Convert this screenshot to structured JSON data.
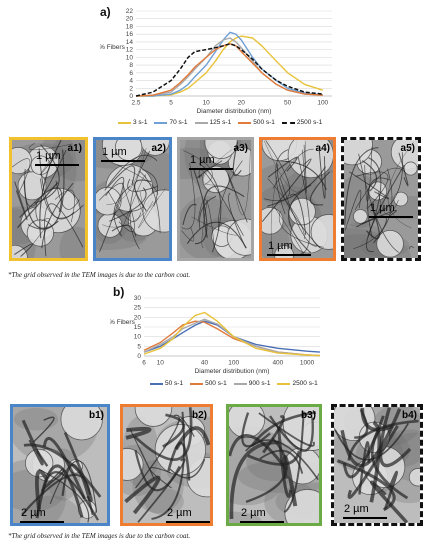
{
  "figure_a": {
    "label": "a)",
    "chart_data": {
      "type": "line",
      "ylabel": "% Fibers",
      "xlabel": "Diameter distribution (nm)",
      "x_scale": "log",
      "x_ticks": [
        "2.5",
        "5",
        "10",
        "20",
        "50",
        "100"
      ],
      "x_tick_values": [
        2.5,
        5,
        10,
        20,
        50,
        100
      ],
      "y_ticks": [
        "0",
        "2",
        "4",
        "6",
        "8",
        "10",
        "12",
        "14",
        "16",
        "18",
        "20",
        "22"
      ],
      "ylim": [
        0,
        22
      ],
      "xlim": [
        2.5,
        120
      ],
      "grid": true,
      "legend_position": "bottom",
      "x": [
        2.5,
        3.5,
        5,
        6,
        7,
        8,
        10,
        12,
        14,
        16,
        18,
        20,
        25,
        30,
        40,
        50,
        70,
        100
      ],
      "series": [
        {
          "name": "3 s-1",
          "color": "#e8c23a",
          "style": "solid",
          "values": [
            0,
            0,
            0.3,
            1,
            2,
            3.5,
            6,
            9,
            12,
            14,
            15,
            15.5,
            15,
            13,
            9,
            6,
            3,
            1.5
          ]
        },
        {
          "name": "70 s-1",
          "color": "#6f9fd4",
          "style": "solid",
          "values": [
            0,
            0,
            0.5,
            1.5,
            3,
            5,
            8,
            11.5,
            14.5,
            16.5,
            16,
            14.5,
            10,
            7,
            4,
            2,
            0.8,
            0.3
          ]
        },
        {
          "name": "125 s-1",
          "color": "#a9a9a9",
          "style": "solid",
          "values": [
            0,
            0.2,
            1,
            3,
            5,
            7,
            10,
            13,
            14.5,
            15,
            14,
            12.5,
            9,
            6,
            3,
            1.5,
            0.5,
            0.2
          ]
        },
        {
          "name": "500 s-1",
          "color": "#e07b3c",
          "style": "solid",
          "values": [
            0,
            0.2,
            1.5,
            3.5,
            5.5,
            7.5,
            10,
            12,
            13,
            13.5,
            13,
            11.5,
            8.5,
            6,
            3,
            1.5,
            0.5,
            0.2
          ]
        },
        {
          "name": "2500 s-1",
          "color": "#111111",
          "style": "dashed",
          "values": [
            0,
            1,
            4,
            7,
            10,
            11.5,
            12,
            12.5,
            13,
            13.5,
            13,
            12,
            9.5,
            7,
            4,
            2.5,
            1,
            0.5
          ]
        }
      ]
    },
    "panels": [
      {
        "tag": "a1)",
        "scale": "1 µm",
        "border": "#f2c12e"
      },
      {
        "tag": "a2)",
        "scale": "1 µm",
        "border": "#4a84c9"
      },
      {
        "tag": "a3)",
        "scale": "1 µm",
        "border": "#a5a5a5"
      },
      {
        "tag": "a4)",
        "scale": "1 µm",
        "border": "#ee7d31"
      },
      {
        "tag": "a5)",
        "scale": "1 µm",
        "border": "#111111"
      }
    ],
    "note": "*The grid observed in the TEM images is due to the carbon coat."
  },
  "figure_b": {
    "label": "b)",
    "chart_data": {
      "type": "line",
      "ylabel": "% Fibers",
      "xlabel": "Diameter distribution (nm)",
      "x_scale": "log",
      "x_ticks": [
        "6",
        "10",
        "40",
        "100",
        "400",
        "1000"
      ],
      "x_tick_values": [
        6,
        10,
        40,
        100,
        400,
        1000
      ],
      "y_ticks": [
        "0",
        "5",
        "10",
        "15",
        "20",
        "25",
        "30"
      ],
      "ylim": [
        0,
        30
      ],
      "xlim": [
        6,
        1500
      ],
      "grid": true,
      "legend_position": "bottom",
      "x": [
        6,
        10,
        15,
        20,
        30,
        40,
        60,
        100,
        200,
        400,
        1000,
        1500
      ],
      "series": [
        {
          "name": "50 s-1",
          "color": "#4a6fb5",
          "style": "solid",
          "values": [
            2,
            5,
            9,
            12,
            16,
            18,
            16,
            10,
            6,
            4,
            2.5,
            2
          ]
        },
        {
          "name": "500 s-1",
          "color": "#e07b3c",
          "style": "solid",
          "values": [
            3,
            7,
            12,
            16,
            18,
            17.5,
            14,
            9,
            5,
            2,
            0.5,
            0.2
          ]
        },
        {
          "name": "900 s-1",
          "color": "#a9a9a9",
          "style": "solid",
          "values": [
            2,
            6,
            10,
            14,
            17,
            19,
            16.5,
            10,
            5,
            2,
            0.5,
            0.2
          ]
        },
        {
          "name": "2500 s-1",
          "color": "#e8c23a",
          "style": "solid",
          "values": [
            1,
            4,
            9,
            15,
            21,
            22.5,
            18,
            10,
            4,
            1.5,
            0.5,
            0.2
          ]
        }
      ]
    },
    "panels": [
      {
        "tag": "b1)",
        "scale": "2 µm",
        "border": "#4a84c9"
      },
      {
        "tag": "b2)",
        "scale": "2 µm",
        "border": "#ee7d31"
      },
      {
        "tag": "b3)",
        "scale": "2 µm",
        "border": "#6aab45"
      },
      {
        "tag": "b4)",
        "scale": "2 µm",
        "border": "#111111"
      }
    ],
    "note": "*The grid observed in the TEM images is due to the carbon coat."
  }
}
